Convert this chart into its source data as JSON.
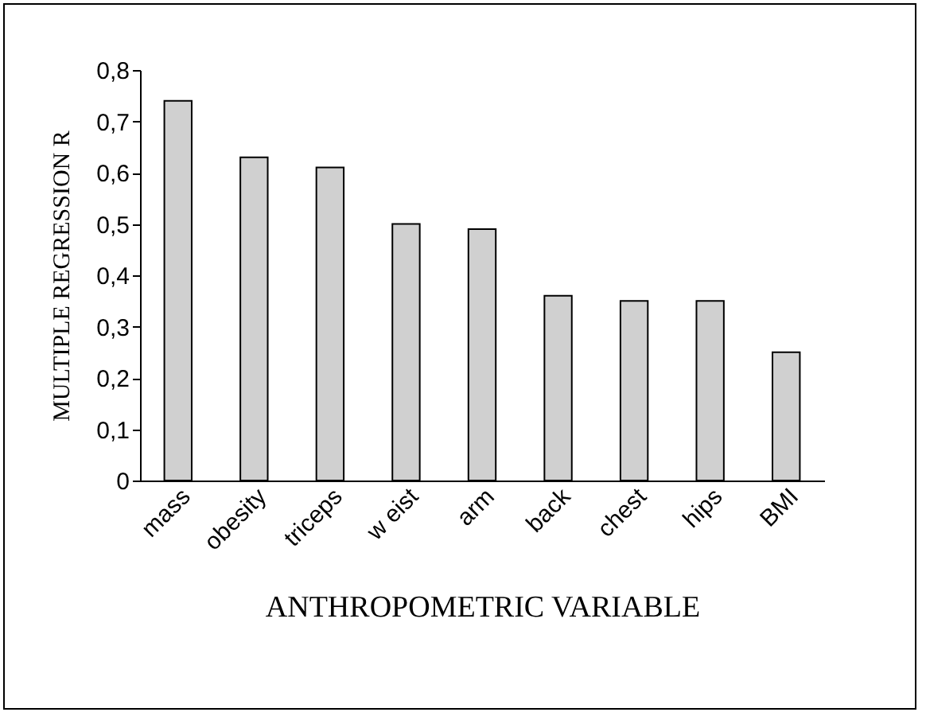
{
  "chart_data": {
    "type": "bar",
    "xlabel": "ANTHROPOMETRIC  VARIABLE",
    "ylabel": "MULTIPLE  REGRESSION  R",
    "categories": [
      "mass",
      "obesity",
      "triceps",
      "w eist",
      "arm",
      "back",
      "chest",
      "hips",
      "BMI"
    ],
    "values": [
      0.74,
      0.63,
      0.61,
      0.5,
      0.49,
      0.36,
      0.35,
      0.35,
      0.25
    ],
    "color": "#d0d0d0",
    "ylim": [
      0,
      0.8
    ],
    "yticks": [
      0,
      {
        "value": 0.1,
        "label": "0,1"
      },
      {
        "value": 0.2,
        "label": "0,2"
      },
      {
        "value": 0.3,
        "label": "0,3"
      },
      {
        "value": 0.4,
        "label": "0,4"
      },
      {
        "value": 0.5,
        "label": "0,5"
      },
      {
        "value": 0.6,
        "label": "0,6"
      },
      {
        "value": 0.7,
        "label": "0,7"
      },
      {
        "value": 0.8,
        "label": "0,8"
      }
    ],
    "grid": false
  }
}
